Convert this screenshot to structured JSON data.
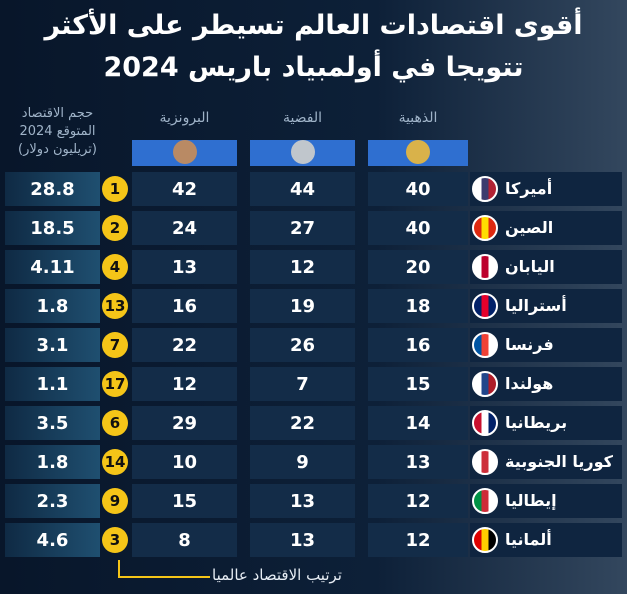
{
  "title": [
    "أقوى اقتصادات العالم تسيطر على الأكثر",
    "تتويجا في أولمبياد باريس 2024"
  ],
  "table": {
    "columns": [
      "الذهبية",
      "الفضية",
      "البرونزية",
      [
        "حجم الاقتصاد",
        "المتوقع 2024",
        "(تريليون دولار)"
      ]
    ],
    "rows": [
      [
        "أميركا",
        40,
        44,
        42,
        1,
        28.8
      ],
      [
        "الصين",
        40,
        27,
        24,
        2,
        18.5
      ],
      [
        "اليابان",
        20,
        12,
        13,
        4,
        4.11
      ],
      [
        "أستراليا",
        18,
        19,
        16,
        13,
        1.8
      ],
      [
        "فرنسا",
        16,
        26,
        22,
        7,
        3.1
      ],
      [
        "هولندا",
        15,
        7,
        12,
        17,
        1.1
      ],
      [
        "بريطانيا",
        14,
        22,
        29,
        6,
        3.5
      ],
      [
        "كوريا الجنوبية",
        13,
        9,
        10,
        14,
        1.8
      ],
      [
        "إيطاليا",
        12,
        13,
        15,
        9,
        2.3
      ],
      [
        "ألمانيا",
        12,
        13,
        8,
        3,
        4.6
      ]
    ]
  },
  "footnote": "ترتيب الاقتصاد عالميا"
}
